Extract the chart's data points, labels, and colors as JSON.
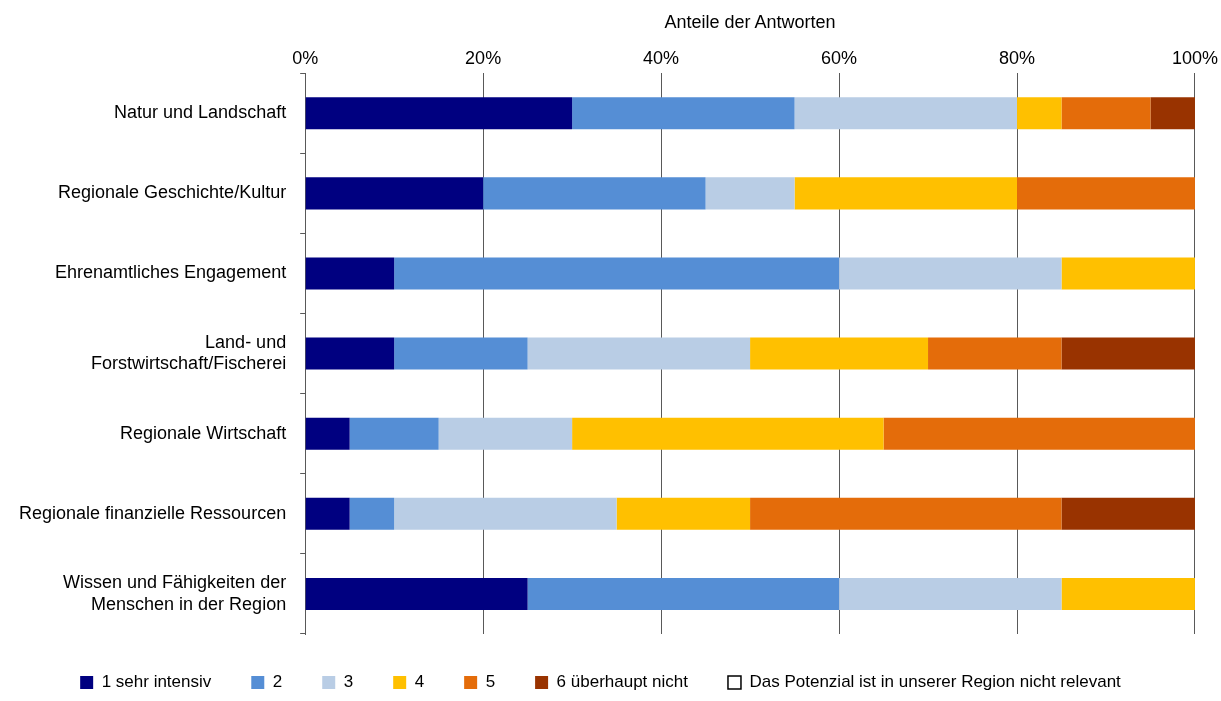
{
  "chart_data": {
    "type": "bar",
    "orientation": "horizontal",
    "stacked": true,
    "xlabel": "Anteile der Antworten",
    "categories": [
      "Natur und Landschaft",
      "Regionale Geschichte/Kultur",
      "Ehrenamtliches Engagement",
      "Land- und Forstwirtschaft/Fischerei",
      "Regionale Wirtschaft",
      "Regionale finanzielle Ressourcen",
      "Wissen und Fähigkeiten der Menschen in der Region"
    ],
    "series": [
      {
        "name": "1 sehr intensiv",
        "color": "#000080",
        "values": [
          30,
          20,
          10,
          10,
          5,
          5,
          25
        ]
      },
      {
        "name": "2",
        "color": "#558ed5",
        "values": [
          25,
          25,
          50,
          15,
          10,
          5,
          35
        ]
      },
      {
        "name": "3",
        "color": "#b9cde5",
        "values": [
          25,
          10,
          25,
          25,
          15,
          25,
          25
        ]
      },
      {
        "name": "4",
        "color": "#ffc000",
        "values": [
          5,
          25,
          15,
          20,
          35,
          15,
          15
        ]
      },
      {
        "name": "5",
        "color": "#e46c0a",
        "values": [
          10,
          20,
          0,
          15,
          35,
          35,
          0
        ]
      },
      {
        "name": "6 überhaupt nicht",
        "color": "#993300",
        "values": [
          5,
          0,
          0,
          15,
          0,
          15,
          0
        ]
      },
      {
        "name": "Das Potenzial ist in unserer Region nicht relevant",
        "color": "#ffffff",
        "values": [
          0,
          0,
          0,
          0,
          0,
          0,
          0
        ]
      }
    ],
    "xlim": [
      0,
      100
    ],
    "xticks": [
      {
        "value": 0,
        "label": "0%"
      },
      {
        "value": 20,
        "label": "20%"
      },
      {
        "value": 40,
        "label": "40%"
      },
      {
        "value": 60,
        "label": "60%"
      },
      {
        "value": 80,
        "label": "80%"
      },
      {
        "value": 100,
        "label": "100%"
      }
    ],
    "grid": "x",
    "legend": "bottom"
  }
}
